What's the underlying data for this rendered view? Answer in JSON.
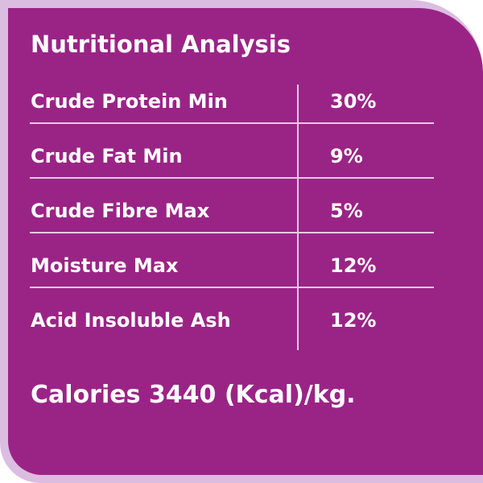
{
  "header": {
    "title": "Nutritional Analysis"
  },
  "table": {
    "rows": [
      [
        "Crude Protein Min",
        "30%"
      ],
      [
        "Crude Fat Min",
        "9%"
      ],
      [
        "Crude Fibre Max",
        "5%"
      ],
      [
        "Moisture Max",
        "12%"
      ],
      [
        "Acid Insoluble Ash",
        "12%"
      ]
    ]
  },
  "footer": {
    "text": "Calories 3440 (Kcal)/kg."
  }
}
